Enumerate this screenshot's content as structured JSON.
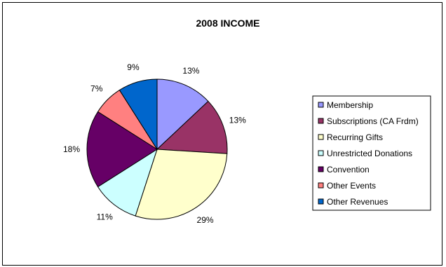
{
  "chart_data": {
    "type": "pie",
    "title": "2008 INCOME",
    "legend_position": "right",
    "slices": [
      {
        "label": "Membership",
        "value": 13,
        "value_label": "13%",
        "color": "#9999ff"
      },
      {
        "label": "Subscriptions (CA Frdm)",
        "value": 13,
        "value_label": "13%",
        "color": "#993366"
      },
      {
        "label": "Recurring Gifts",
        "value": 29,
        "value_label": "29%",
        "color": "#ffffcc"
      },
      {
        "label": "Unrestricted Donations",
        "value": 11,
        "value_label": "11%",
        "color": "#ccffff"
      },
      {
        "label": "Convention",
        "value": 18,
        "value_label": "18%",
        "color": "#660066"
      },
      {
        "label": "Other Events",
        "value": 7,
        "value_label": "7%",
        "color": "#ff8080"
      },
      {
        "label": "Other Revenues",
        "value": 9,
        "value_label": "9%",
        "color": "#0066cc"
      }
    ]
  }
}
